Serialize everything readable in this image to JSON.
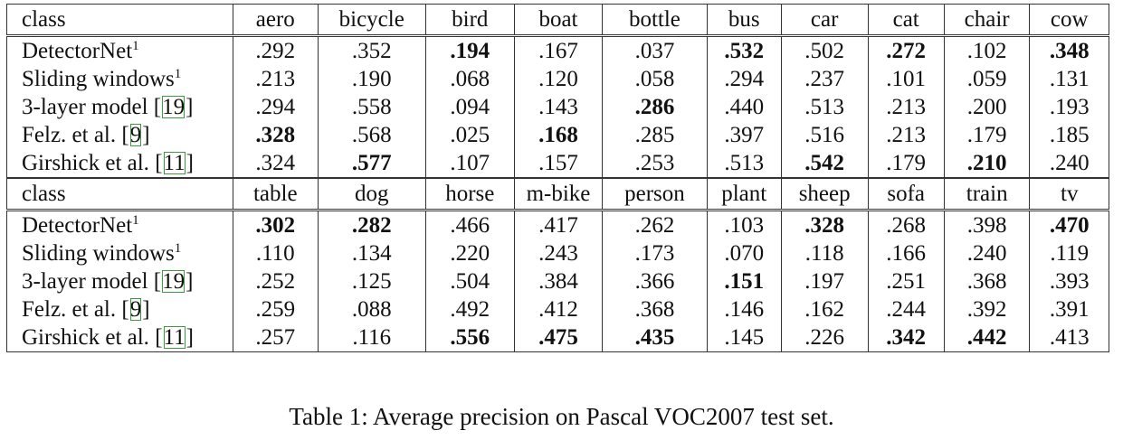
{
  "tables": [
    {
      "header_label": "class",
      "classes": [
        "aero",
        "bicycle",
        "bird",
        "boat",
        "bottle",
        "bus",
        "car",
        "cat",
        "chair",
        "cow"
      ],
      "rows": [
        {
          "method": "DetectorNet",
          "sup": "1",
          "cite": "",
          "values": [
            ".292",
            ".352",
            ".194",
            ".167",
            ".037",
            ".532",
            ".502",
            ".272",
            ".102",
            ".348"
          ],
          "bold": [
            false,
            false,
            true,
            false,
            false,
            true,
            false,
            true,
            false,
            true
          ]
        },
        {
          "method": "Sliding windows",
          "sup": "1",
          "cite": "",
          "values": [
            ".213",
            ".190",
            ".068",
            ".120",
            ".058",
            ".294",
            ".237",
            ".101",
            ".059",
            ".131"
          ],
          "bold": [
            false,
            false,
            false,
            false,
            false,
            false,
            false,
            false,
            false,
            false
          ]
        },
        {
          "method": "3-layer model",
          "sup": "",
          "cite": "19",
          "values": [
            ".294",
            ".558",
            ".094",
            ".143",
            ".286",
            ".440",
            ".513",
            ".213",
            ".200",
            ".193"
          ],
          "bold": [
            false,
            false,
            false,
            false,
            true,
            false,
            false,
            false,
            false,
            false
          ]
        },
        {
          "method": "Felz. et al.",
          "sup": "",
          "cite": "9",
          "values": [
            ".328",
            ".568",
            ".025",
            ".168",
            ".285",
            ".397",
            ".516",
            ".213",
            ".179",
            ".185"
          ],
          "bold": [
            true,
            false,
            false,
            true,
            false,
            false,
            false,
            false,
            false,
            false
          ]
        },
        {
          "method": "Girshick et al.",
          "sup": "",
          "cite": "11",
          "values": [
            ".324",
            ".577",
            ".107",
            ".157",
            ".253",
            ".513",
            ".542",
            ".179",
            ".210",
            ".240"
          ],
          "bold": [
            false,
            true,
            false,
            false,
            false,
            false,
            true,
            false,
            true,
            false
          ]
        }
      ]
    },
    {
      "header_label": "class",
      "classes": [
        "table",
        "dog",
        "horse",
        "m-bike",
        "person",
        "plant",
        "sheep",
        "sofa",
        "train",
        "tv"
      ],
      "rows": [
        {
          "method": "DetectorNet",
          "sup": "1",
          "cite": "",
          "values": [
            ".302",
            ".282",
            ".466",
            ".417",
            ".262",
            ".103",
            ".328",
            ".268",
            ".398",
            ".470"
          ],
          "bold": [
            true,
            true,
            false,
            false,
            false,
            false,
            true,
            false,
            false,
            true
          ]
        },
        {
          "method": "Sliding windows",
          "sup": "1",
          "cite": "",
          "values": [
            ".110",
            ".134",
            ".220",
            ".243",
            ".173",
            ".070",
            ".118",
            ".166",
            ".240",
            ".119"
          ],
          "bold": [
            false,
            false,
            false,
            false,
            false,
            false,
            false,
            false,
            false,
            false
          ]
        },
        {
          "method": "3-layer model",
          "sup": "",
          "cite": "19",
          "values": [
            ".252",
            ".125",
            ".504",
            ".384",
            ".366",
            ".151",
            ".197",
            ".251",
            ".368",
            ".393"
          ],
          "bold": [
            false,
            false,
            false,
            false,
            false,
            true,
            false,
            false,
            false,
            false
          ]
        },
        {
          "method": "Felz. et al.",
          "sup": "",
          "cite": "9",
          "values": [
            ".259",
            ".088",
            ".492",
            ".412",
            ".368",
            ".146",
            ".162",
            ".244",
            ".392",
            ".391"
          ],
          "bold": [
            false,
            false,
            false,
            false,
            false,
            false,
            false,
            false,
            false,
            false
          ]
        },
        {
          "method": "Girshick et al.",
          "sup": "",
          "cite": "11",
          "values": [
            ".257",
            ".116",
            ".556",
            ".475",
            ".435",
            ".145",
            ".226",
            ".342",
            ".442",
            ".413"
          ],
          "bold": [
            false,
            false,
            true,
            true,
            true,
            false,
            false,
            true,
            true,
            false
          ]
        }
      ]
    }
  ],
  "caption": "Table 1:  Average precision on Pascal VOC2007 test set."
}
